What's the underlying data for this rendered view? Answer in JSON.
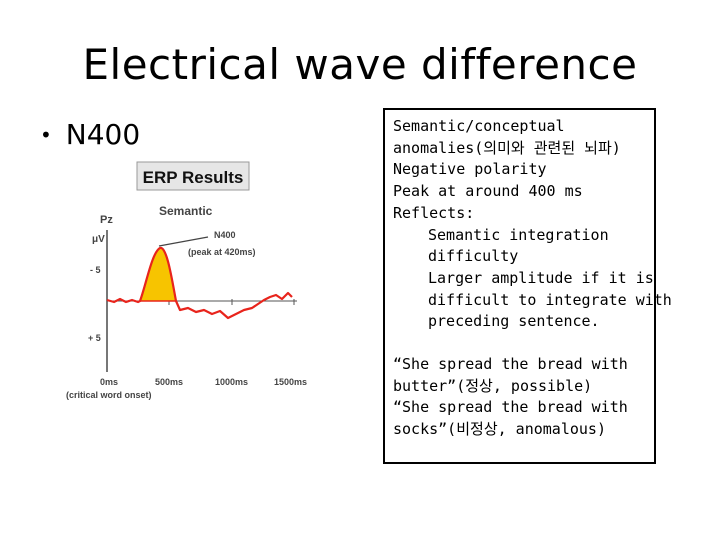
{
  "slide": {
    "title": "Electrical wave difference",
    "bullet": "N400"
  },
  "figure": {
    "heading": "ERP Results",
    "electrode": "Pz",
    "unit": "μV",
    "condition_label": "Semantic",
    "y_ticks": [
      "- 5",
      "+ 5"
    ],
    "peak_label": "N400",
    "peak_note": "(peak at 420ms)",
    "x_ticks": [
      "0ms",
      "500ms",
      "1000ms",
      "1500ms"
    ],
    "x_note": "(critical word onset)",
    "colors": {
      "erp_line": "#e8241c",
      "n400_fill": "#f7c400",
      "heading_bg": "#e6e6e6"
    }
  },
  "box": {
    "lines": [
      "Semantic/conceptual",
      "anomalies(의미와 관련된 뇌파)",
      "Negative polarity",
      "Peak at around 400 ms",
      "Reflects:"
    ],
    "indented": [
      "Semantic integration",
      "difficulty",
      "Larger amplitude if it is",
      "difficult to integrate with",
      "preceding sentence."
    ],
    "examples": [
      "“She spread the bread with",
      "butter”(정상, possible)",
      "“She spread the bread with",
      "socks”(비정상, anomalous)"
    ]
  }
}
